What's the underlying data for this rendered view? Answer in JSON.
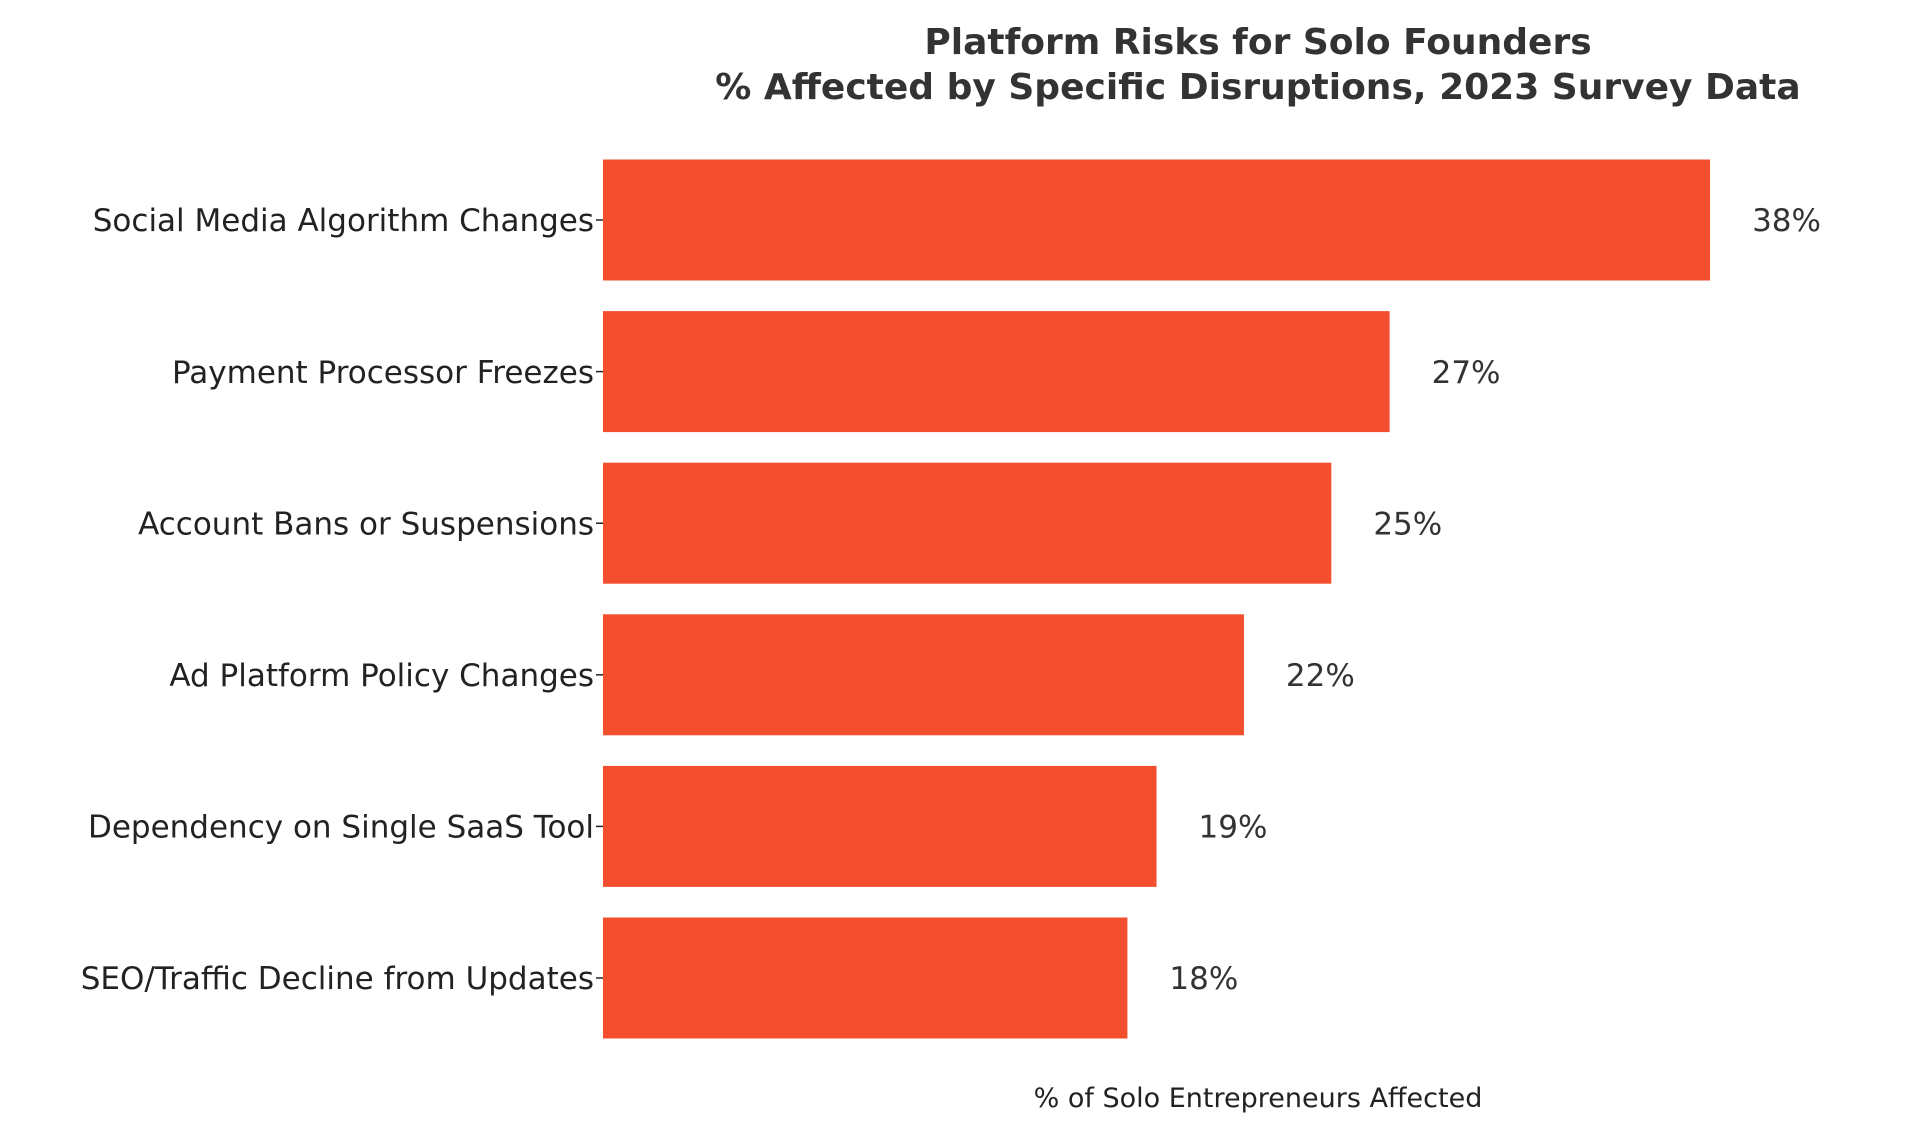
{
  "chart_data": {
    "type": "bar",
    "orientation": "horizontal",
    "title": "Platform Risks for Solo Founders",
    "subtitle": "% Affected by Specific Disruptions, 2023 Survey Data",
    "xlabel": "% of Solo Entrepreneurs Affected",
    "ylabel": "",
    "categories": [
      "Social Media Algorithm Changes",
      "Payment Processor Freezes",
      "Account Bans or Suspensions",
      "Ad Platform Policy Changes",
      "Dependency on Single SaaS Tool",
      "SEO/Traffic Decline from Updates"
    ],
    "values": [
      38,
      27,
      25,
      22,
      19,
      18
    ],
    "value_labels": [
      "38%",
      "27%",
      "25%",
      "22%",
      "19%",
      "18%"
    ],
    "xlim": [
      0,
      45
    ],
    "grid": false,
    "legend": "none",
    "bar_color": "#f34f2f"
  }
}
